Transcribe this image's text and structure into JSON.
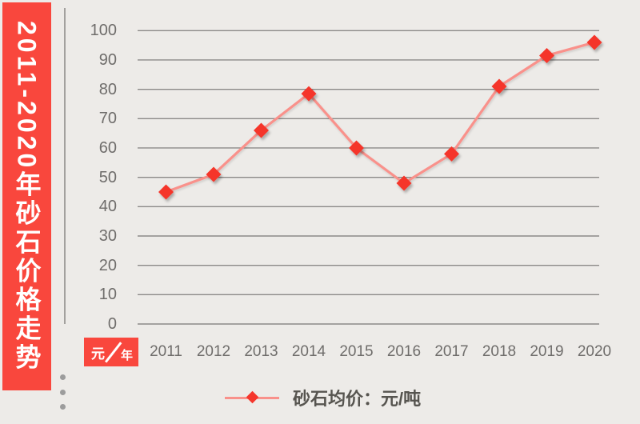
{
  "banner": {
    "title": "2011-2020年砂石价格走势"
  },
  "unit_box": {
    "value_unit": "元",
    "category_unit": "年"
  },
  "legend": {
    "label": "砂石均价：元/吨"
  },
  "colors": {
    "accent_red": "#f9473d",
    "marker_red": "#f5362c",
    "line_red": "#f9918b",
    "grid_gray": "#8b8987",
    "tick_text": "#6f6d6b",
    "background": "#edebe8"
  },
  "chart_data": {
    "type": "line",
    "title": "2011-2020年砂石价格走势",
    "categories": [
      "2011",
      "2012",
      "2013",
      "2014",
      "2015",
      "2016",
      "2017",
      "2018",
      "2019",
      "2020"
    ],
    "series": [
      {
        "name": "砂石均价：元/吨",
        "values": [
          45,
          51,
          66,
          78.5,
          60,
          48,
          58,
          81,
          91.5,
          96
        ]
      }
    ],
    "xlabel": "年",
    "ylabel": "元",
    "ylim": [
      0,
      100
    ],
    "y_ticks": [
      0,
      10,
      20,
      30,
      40,
      50,
      60,
      70,
      80,
      90,
      100
    ],
    "grid": true,
    "legend_position": "bottom"
  }
}
